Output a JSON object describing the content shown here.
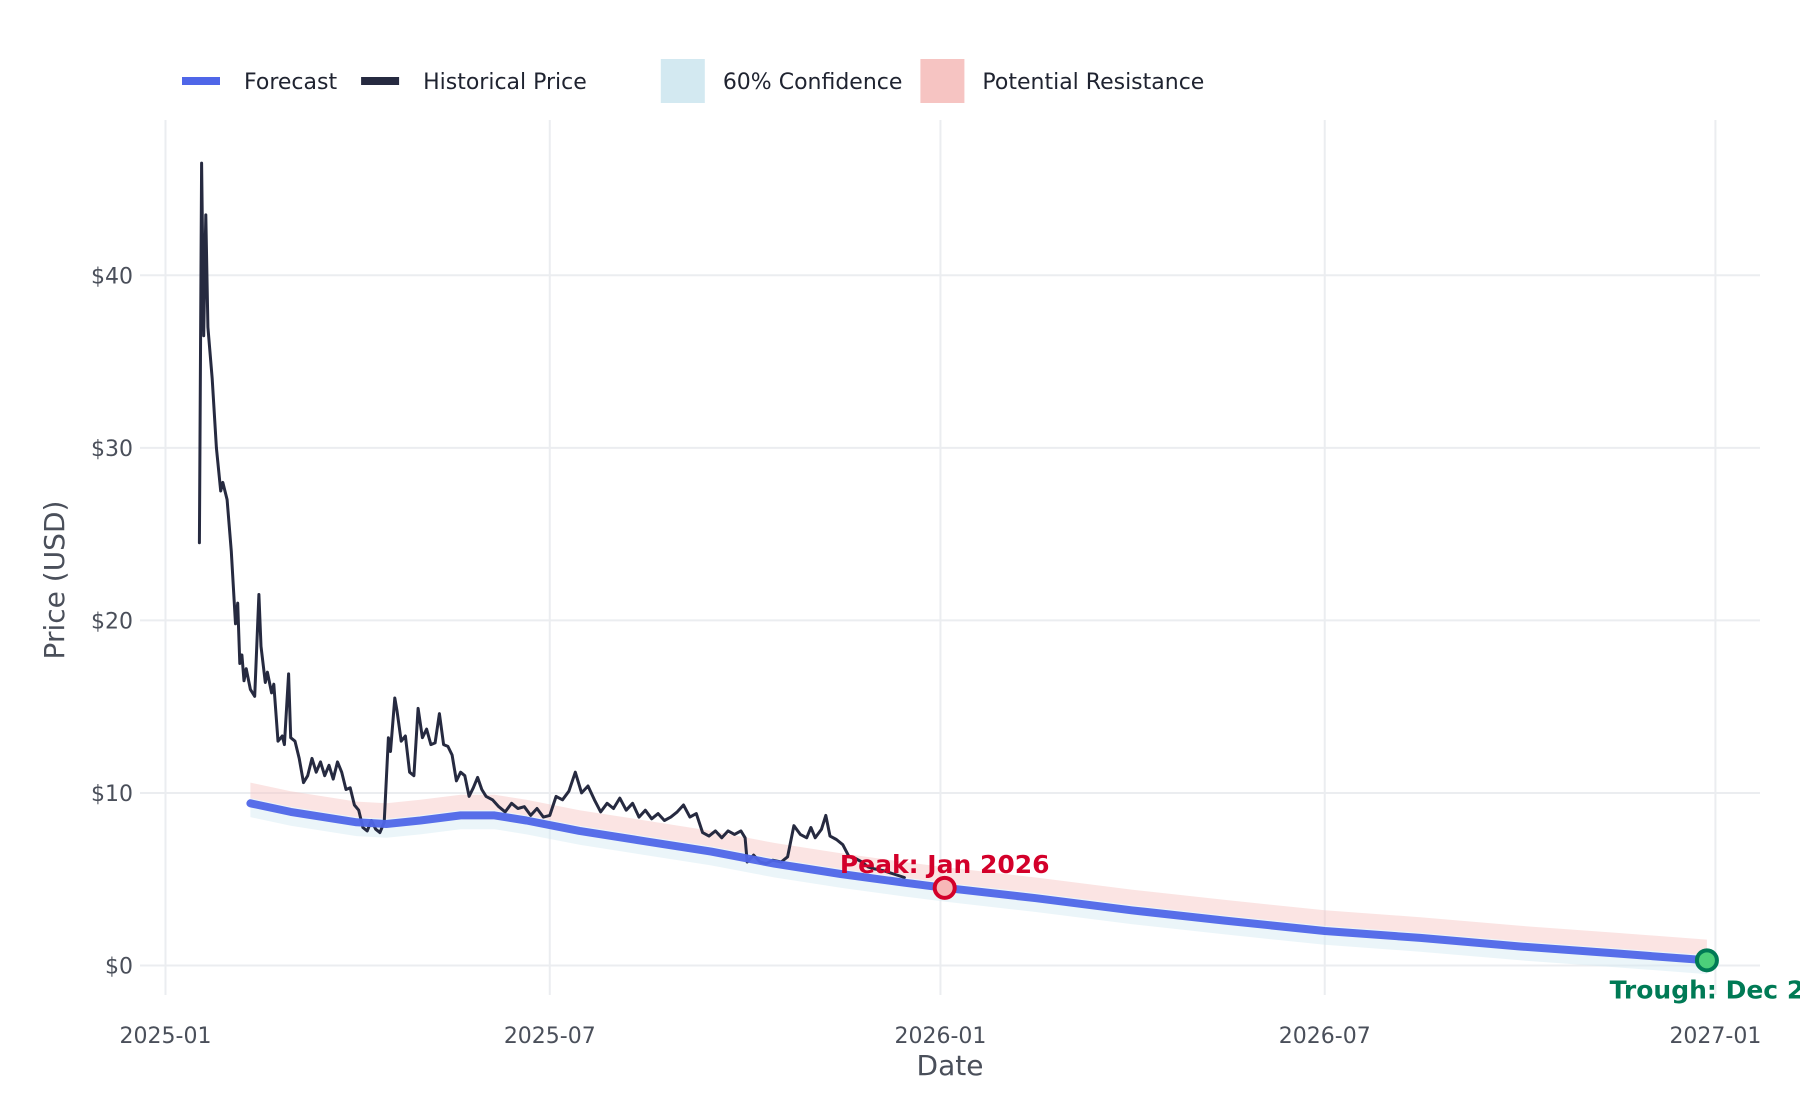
{
  "chart_data": {
    "type": "line",
    "xlabel": "Date",
    "ylabel": "Price (USD)",
    "x_ticks": [
      "2025-01",
      "2025-07",
      "2026-01",
      "2026-07",
      "2027-01"
    ],
    "y_ticks": [
      "$0",
      "$10",
      "$20",
      "$30",
      "$40"
    ],
    "x_range": [
      "2024-12-20",
      "2027-01-22"
    ],
    "ylim": [
      -2,
      49
    ],
    "grid": true,
    "legend_position": "top-left",
    "legend": [
      {
        "label": "Forecast",
        "kind": "line",
        "color": "#4f66e8"
      },
      {
        "label": "Historical Price",
        "kind": "line",
        "color": "#262a40"
      },
      {
        "label": "60% Confidence",
        "kind": "band",
        "color": "#d3e9f1"
      },
      {
        "label": "Potential Resistance",
        "kind": "band",
        "color": "#f6c4c2"
      }
    ],
    "series": [
      {
        "name": "Historical Price",
        "color": "#262a40",
        "points": [
          [
            "2025-01-17",
            24.5
          ],
          [
            "2025-01-18",
            46.5
          ],
          [
            "2025-01-19",
            36.5
          ],
          [
            "2025-01-20",
            43.5
          ],
          [
            "2025-01-21",
            37.0
          ],
          [
            "2025-01-23",
            34.0
          ],
          [
            "2025-01-25",
            30.0
          ],
          [
            "2025-01-27",
            27.5
          ],
          [
            "2025-01-28",
            28.0
          ],
          [
            "2025-01-30",
            27.0
          ],
          [
            "2025-02-01",
            24.0
          ],
          [
            "2025-02-03",
            19.8
          ],
          [
            "2025-02-04",
            21.0
          ],
          [
            "2025-02-05",
            17.5
          ],
          [
            "2025-02-06",
            18.0
          ],
          [
            "2025-02-07",
            16.5
          ],
          [
            "2025-02-08",
            17.2
          ],
          [
            "2025-02-10",
            16.0
          ],
          [
            "2025-02-12",
            15.6
          ],
          [
            "2025-02-14",
            21.5
          ],
          [
            "2025-02-15",
            18.5
          ],
          [
            "2025-02-17",
            16.4
          ],
          [
            "2025-02-18",
            17.0
          ],
          [
            "2025-02-20",
            15.8
          ],
          [
            "2025-02-21",
            16.3
          ],
          [
            "2025-02-23",
            13.0
          ],
          [
            "2025-02-25",
            13.3
          ],
          [
            "2025-02-26",
            12.8
          ],
          [
            "2025-02-28",
            16.9
          ],
          [
            "2025-03-01",
            13.2
          ],
          [
            "2025-03-03",
            13.0
          ],
          [
            "2025-03-05",
            12.0
          ],
          [
            "2025-03-07",
            10.6
          ],
          [
            "2025-03-09",
            11.0
          ],
          [
            "2025-03-11",
            12.0
          ],
          [
            "2025-03-13",
            11.2
          ],
          [
            "2025-03-15",
            11.8
          ],
          [
            "2025-03-17",
            11.0
          ],
          [
            "2025-03-19",
            11.6
          ],
          [
            "2025-03-21",
            10.8
          ],
          [
            "2025-03-23",
            11.8
          ],
          [
            "2025-03-25",
            11.2
          ],
          [
            "2025-03-27",
            10.2
          ],
          [
            "2025-03-29",
            10.3
          ],
          [
            "2025-03-31",
            9.3
          ],
          [
            "2025-04-02",
            9.0
          ],
          [
            "2025-04-04",
            8.0
          ],
          [
            "2025-04-06",
            7.8
          ],
          [
            "2025-04-08",
            8.4
          ],
          [
            "2025-04-10",
            7.9
          ],
          [
            "2025-04-12",
            7.7
          ],
          [
            "2025-04-14",
            8.3
          ],
          [
            "2025-04-16",
            13.2
          ],
          [
            "2025-04-17",
            12.4
          ],
          [
            "2025-04-19",
            15.5
          ],
          [
            "2025-04-20",
            14.8
          ],
          [
            "2025-04-22",
            13.0
          ],
          [
            "2025-04-24",
            13.3
          ],
          [
            "2025-04-26",
            11.2
          ],
          [
            "2025-04-28",
            11.0
          ],
          [
            "2025-04-30",
            14.9
          ],
          [
            "2025-05-02",
            13.2
          ],
          [
            "2025-05-04",
            13.7
          ],
          [
            "2025-05-06",
            12.8
          ],
          [
            "2025-05-08",
            12.9
          ],
          [
            "2025-05-10",
            14.6
          ],
          [
            "2025-05-12",
            12.8
          ],
          [
            "2025-05-14",
            12.7
          ],
          [
            "2025-05-16",
            12.2
          ],
          [
            "2025-05-18",
            10.7
          ],
          [
            "2025-05-20",
            11.2
          ],
          [
            "2025-05-22",
            11.0
          ],
          [
            "2025-05-24",
            9.8
          ],
          [
            "2025-05-26",
            10.3
          ],
          [
            "2025-05-28",
            10.9
          ],
          [
            "2025-05-30",
            10.2
          ],
          [
            "2025-06-01",
            9.8
          ],
          [
            "2025-06-04",
            9.6
          ],
          [
            "2025-06-07",
            9.2
          ],
          [
            "2025-06-10",
            8.9
          ],
          [
            "2025-06-13",
            9.4
          ],
          [
            "2025-06-16",
            9.1
          ],
          [
            "2025-06-19",
            9.2
          ],
          [
            "2025-06-22",
            8.7
          ],
          [
            "2025-06-25",
            9.1
          ],
          [
            "2025-06-28",
            8.6
          ],
          [
            "2025-07-01",
            8.7
          ],
          [
            "2025-07-04",
            9.8
          ],
          [
            "2025-07-07",
            9.6
          ],
          [
            "2025-07-10",
            10.1
          ],
          [
            "2025-07-13",
            11.2
          ],
          [
            "2025-07-16",
            10.0
          ],
          [
            "2025-07-19",
            10.4
          ],
          [
            "2025-07-22",
            9.6
          ],
          [
            "2025-07-25",
            8.9
          ],
          [
            "2025-07-28",
            9.4
          ],
          [
            "2025-07-31",
            9.1
          ],
          [
            "2025-08-03",
            9.7
          ],
          [
            "2025-08-06",
            9.0
          ],
          [
            "2025-08-09",
            9.4
          ],
          [
            "2025-08-12",
            8.6
          ],
          [
            "2025-08-15",
            9.0
          ],
          [
            "2025-08-18",
            8.5
          ],
          [
            "2025-08-21",
            8.8
          ],
          [
            "2025-08-24",
            8.4
          ],
          [
            "2025-08-27",
            8.6
          ],
          [
            "2025-08-30",
            8.9
          ],
          [
            "2025-09-02",
            9.3
          ],
          [
            "2025-09-05",
            8.6
          ],
          [
            "2025-09-08",
            8.8
          ],
          [
            "2025-09-11",
            7.7
          ],
          [
            "2025-09-14",
            7.5
          ],
          [
            "2025-09-17",
            7.8
          ],
          [
            "2025-09-20",
            7.4
          ],
          [
            "2025-09-23",
            7.8
          ],
          [
            "2025-09-26",
            7.6
          ],
          [
            "2025-09-29",
            7.8
          ],
          [
            "2025-10-01",
            7.4
          ],
          [
            "2025-10-02",
            6.0
          ],
          [
            "2025-10-05",
            6.4
          ],
          [
            "2025-10-08",
            6.0
          ],
          [
            "2025-10-11",
            5.9
          ],
          [
            "2025-10-14",
            6.1
          ],
          [
            "2025-10-18",
            6.0
          ],
          [
            "2025-10-21",
            6.3
          ],
          [
            "2025-10-24",
            8.1
          ],
          [
            "2025-10-27",
            7.6
          ],
          [
            "2025-10-30",
            7.4
          ],
          [
            "2025-11-01",
            8.0
          ],
          [
            "2025-11-03",
            7.4
          ],
          [
            "2025-11-06",
            7.9
          ],
          [
            "2025-11-08",
            8.7
          ],
          [
            "2025-11-10",
            7.5
          ],
          [
            "2025-11-13",
            7.3
          ],
          [
            "2025-11-16",
            7.0
          ],
          [
            "2025-11-19",
            6.3
          ],
          [
            "2025-11-22",
            6.2
          ],
          [
            "2025-11-25",
            6.0
          ],
          [
            "2025-11-28",
            5.7
          ],
          [
            "2025-12-01",
            5.6
          ],
          [
            "2025-12-05",
            5.5
          ],
          [
            "2025-12-10",
            5.3
          ],
          [
            "2025-12-15",
            5.1
          ]
        ]
      },
      {
        "name": "Forecast",
        "color": "#4f66e8",
        "points": [
          [
            "2025-02-10",
            9.4
          ],
          [
            "2025-03-01",
            8.9
          ],
          [
            "2025-04-01",
            8.3
          ],
          [
            "2025-04-15",
            8.2
          ],
          [
            "2025-05-01",
            8.4
          ],
          [
            "2025-05-20",
            8.7
          ],
          [
            "2025-06-05",
            8.7
          ],
          [
            "2025-06-20",
            8.4
          ],
          [
            "2025-07-15",
            7.8
          ],
          [
            "2025-08-15",
            7.2
          ],
          [
            "2025-09-15",
            6.6
          ],
          [
            "2025-10-15",
            5.9
          ],
          [
            "2025-11-15",
            5.3
          ],
          [
            "2025-12-15",
            4.8
          ],
          [
            "2026-01-03",
            4.5
          ],
          [
            "2026-02-15",
            3.9
          ],
          [
            "2026-04-01",
            3.2
          ],
          [
            "2026-05-15",
            2.6
          ],
          [
            "2026-07-01",
            2.0
          ],
          [
            "2026-08-15",
            1.6
          ],
          [
            "2026-10-01",
            1.1
          ],
          [
            "2026-11-15",
            0.7
          ],
          [
            "2026-12-28",
            0.3
          ]
        ]
      }
    ],
    "bands": [
      {
        "name": "60% Confidence",
        "lower_offset": -0.8,
        "upper_offset": 0.3,
        "color": "#d3e9f1"
      },
      {
        "name": "Potential Resistance",
        "lower_offset": 0.3,
        "upper_offset": 1.2,
        "color": "#f6c4c2"
      }
    ],
    "annotations": [
      {
        "label": "Peak: Jan 2026",
        "x": "2026-01-03",
        "y": 4.5,
        "color": "#d3002a",
        "fill": "#f7b7b7",
        "position": "above"
      },
      {
        "label": "Trough: Dec 2",
        "x": "2026-12-28",
        "y": 0.3,
        "color": "#007a55",
        "fill": "#4ccf7a",
        "position": "below"
      }
    ]
  }
}
